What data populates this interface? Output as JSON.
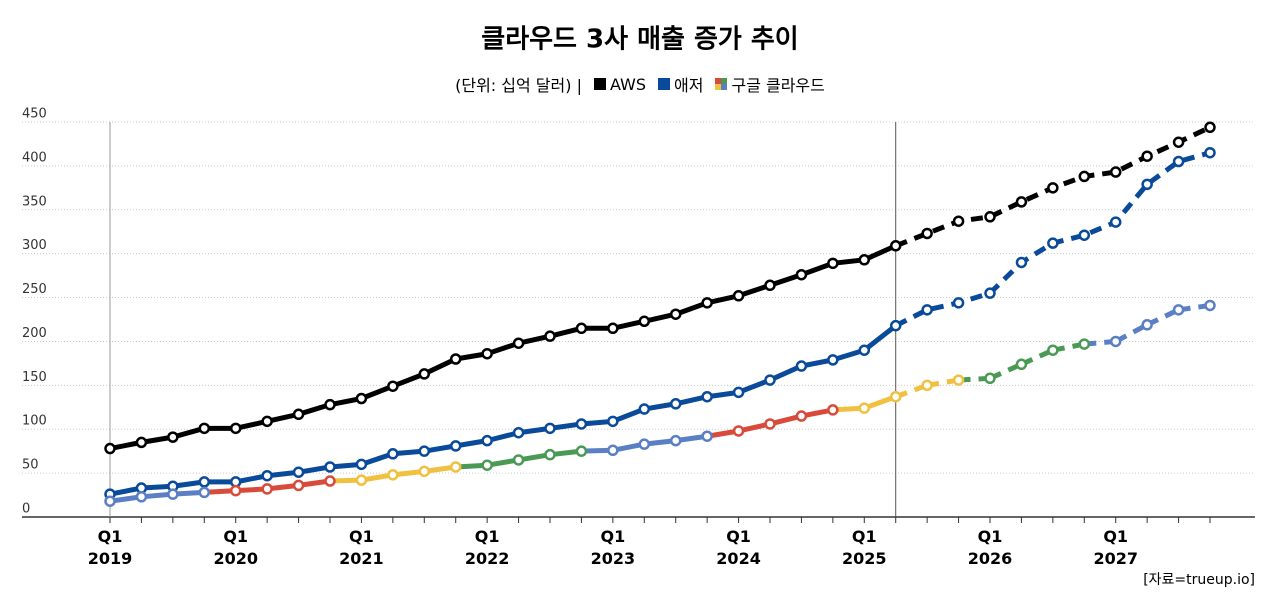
{
  "chart_data": {
    "type": "line",
    "title": "클라우드 3사 매출 증가 추이",
    "unit_note": "(단위: 십억 달러) |",
    "source": "[자료=trueup.io]",
    "categories": [
      "Q1\n2019",
      null,
      null,
      null,
      "Q1\n2020",
      null,
      null,
      null,
      "Q1\n2021",
      null,
      null,
      null,
      "Q1\n2022",
      null,
      null,
      null,
      "Q1\n2023",
      null,
      null,
      null,
      "Q1\n2024",
      null,
      null,
      null,
      "Q1\n2025",
      null,
      null,
      null,
      "Q1\n2026",
      null,
      null,
      null,
      "Q1\n2027",
      null,
      null,
      null
    ],
    "forecast_start": 25,
    "ylim": [
      0,
      450
    ],
    "yticks": [
      0,
      50,
      100,
      150,
      200,
      250,
      300,
      350,
      400,
      450
    ],
    "grid": true,
    "series": [
      {
        "name": "AWS",
        "color": "#000000",
        "values": [
          78,
          85,
          91,
          101,
          101,
          109,
          117,
          128,
          135,
          149,
          163,
          180,
          186,
          198,
          206,
          215,
          215,
          223,
          231,
          244,
          252,
          264,
          276,
          289,
          293,
          309,
          323,
          337,
          342,
          359,
          375,
          388,
          393,
          411,
          427,
          444
        ]
      },
      {
        "name": "애저",
        "color": "#0a4a9a",
        "values": [
          26,
          33,
          35,
          40,
          40,
          47,
          51,
          57,
          60,
          72,
          75,
          81,
          87,
          96,
          101,
          106,
          109,
          123,
          129,
          137,
          142,
          156,
          172,
          179,
          190,
          218,
          236,
          244,
          255,
          290,
          312,
          321,
          336,
          379,
          405,
          415
        ]
      },
      {
        "name": "구글 클라우드",
        "color": [
          "#5a7fc4",
          "#d94a3a",
          "#f0c040",
          "#4a9a55"
        ],
        "values": [
          18,
          23,
          26,
          28,
          30,
          32,
          36,
          41,
          42,
          48,
          52,
          57,
          59,
          65,
          71,
          75,
          76,
          83,
          87,
          92,
          98,
          106,
          115,
          122,
          124,
          137,
          150,
          156,
          158,
          174,
          190,
          197,
          200,
          219,
          236,
          241
        ]
      }
    ]
  }
}
